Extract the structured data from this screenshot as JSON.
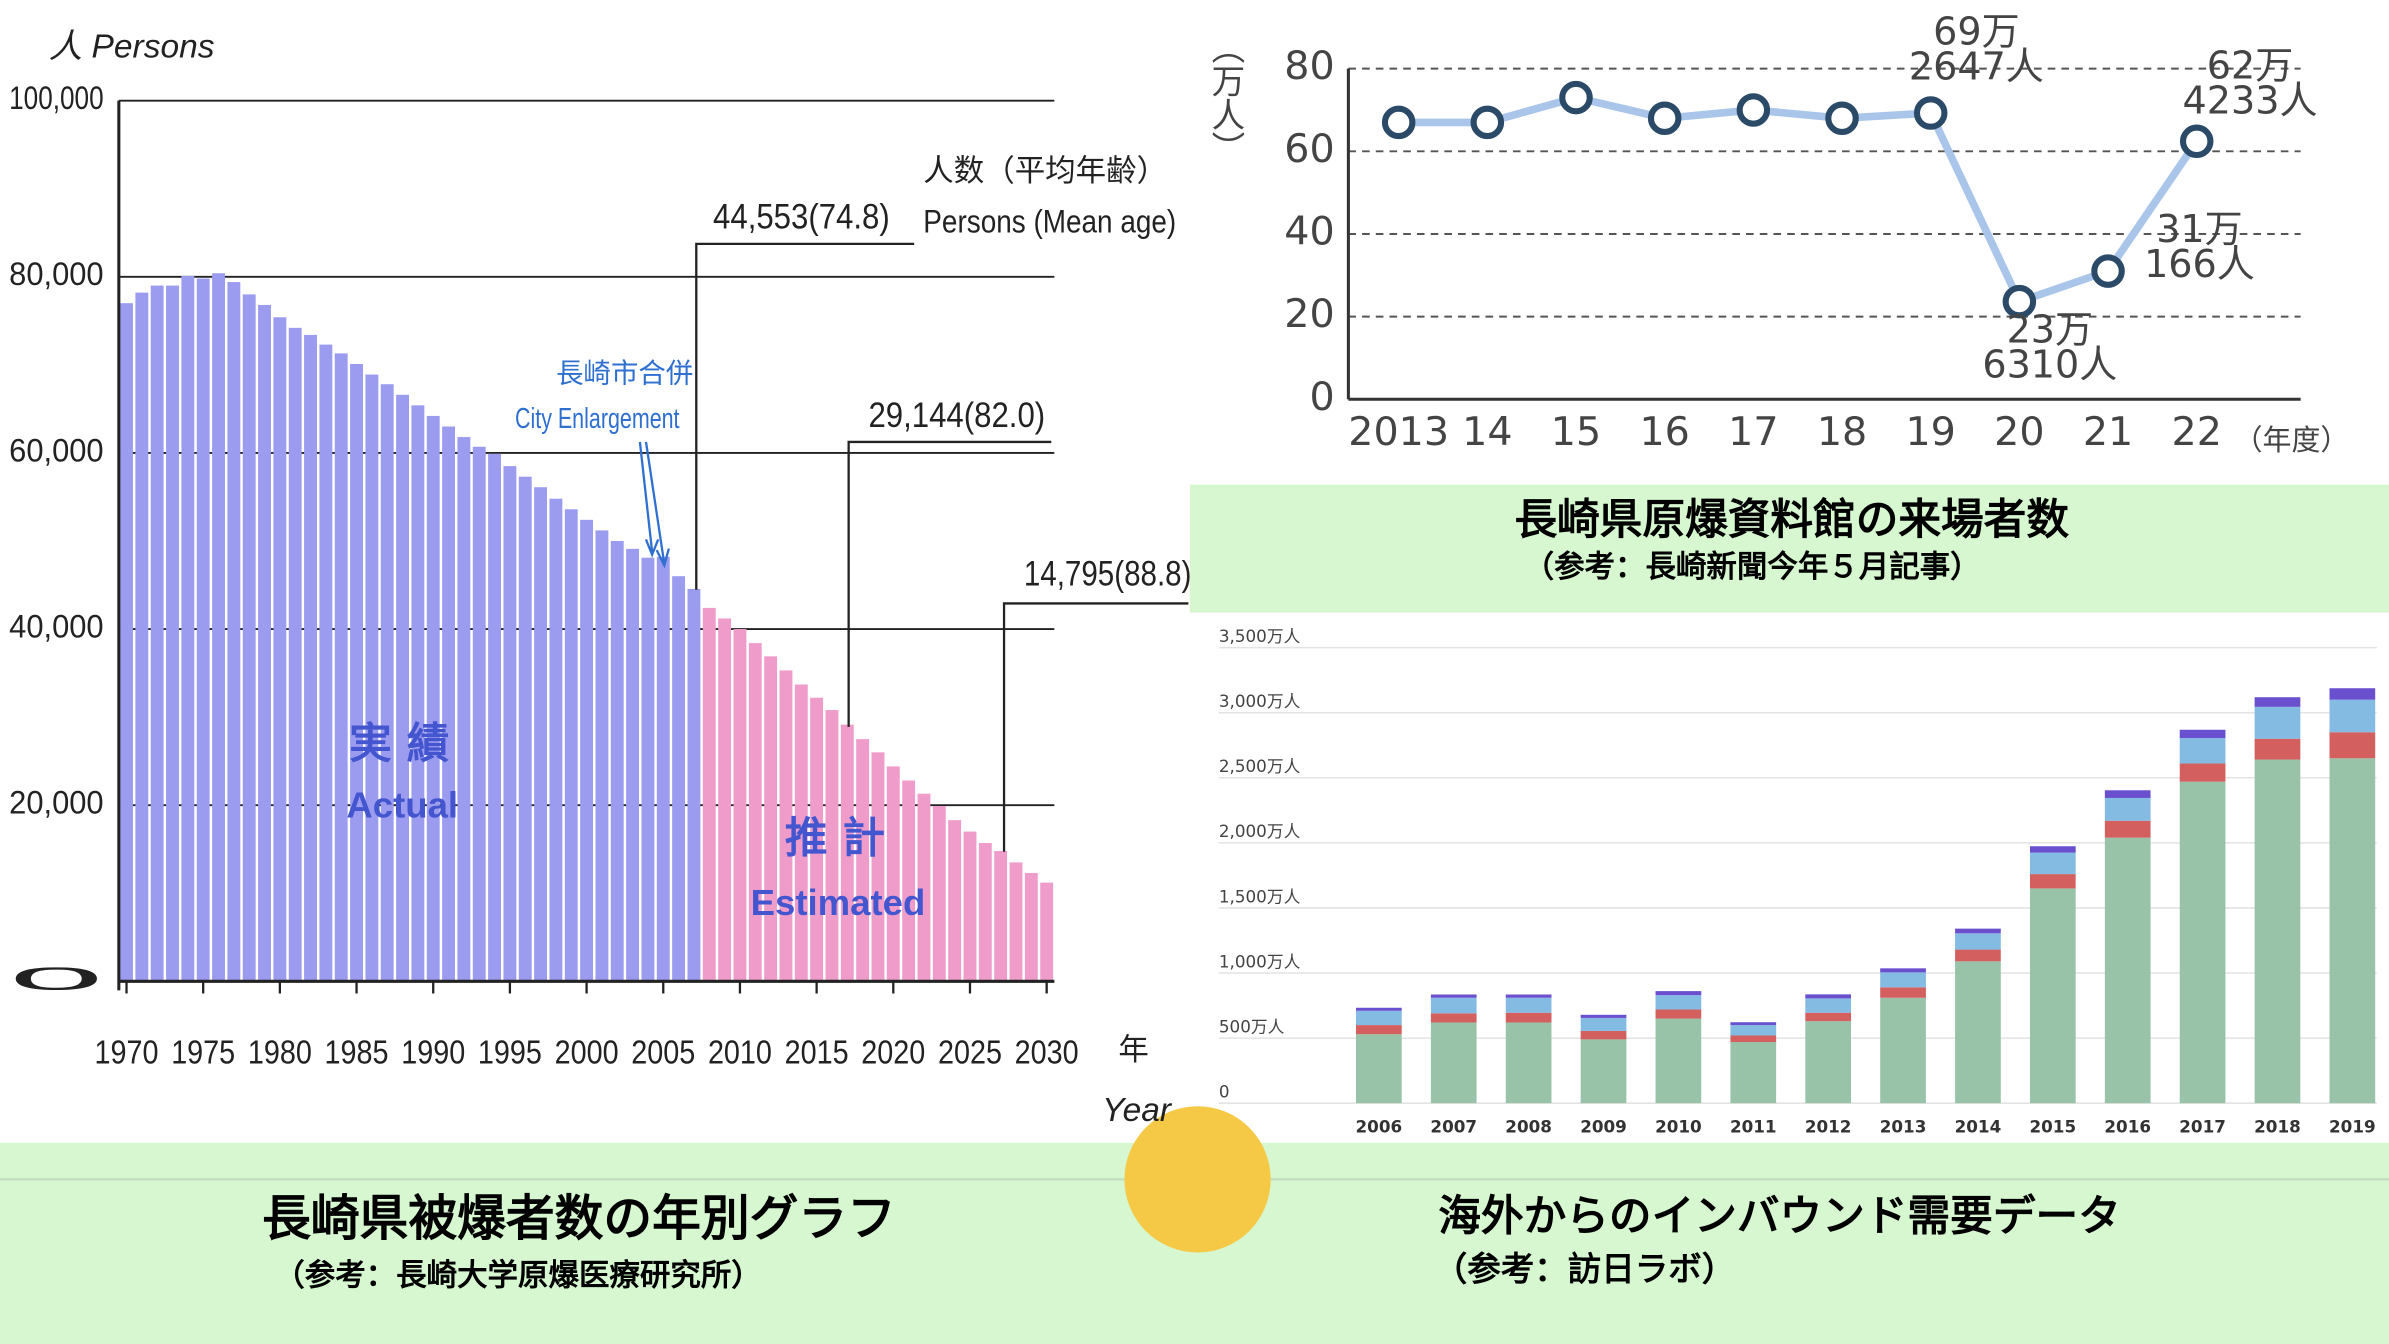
{
  "chart_data": [
    {
      "type": "bar",
      "title": "長崎県被爆者数の年別グラフ",
      "subtitle": "（参考：長崎大学原爆医療研究所）",
      "y_label": "人 Persons",
      "x_label": [
        "年",
        "Year"
      ],
      "annotation_title": [
        "人数（平均年齢）",
        "Persons (Mean age)"
      ],
      "annotations": [
        "44,553(74.8)",
        "29,144(82.0)",
        "14,795(88.8)"
      ],
      "event": [
        "長崎市合併",
        "City Enlargement"
      ],
      "x": [
        1970,
        1971,
        1972,
        1973,
        1974,
        1975,
        1976,
        1977,
        1978,
        1979,
        1980,
        1981,
        1982,
        1983,
        1984,
        1985,
        1986,
        1987,
        1988,
        1989,
        1990,
        1991,
        1992,
        1993,
        1994,
        1995,
        1996,
        1997,
        1998,
        1999,
        2000,
        2001,
        2002,
        2003,
        2004,
        2005,
        2006,
        2007,
        2008,
        2009,
        2010,
        2011,
        2012,
        2013,
        2014,
        2015,
        2016,
        2017,
        2018,
        2019,
        2020,
        2021,
        2022,
        2023,
        2024,
        2025,
        2026,
        2027,
        2028,
        2029,
        2030
      ],
      "xlim": [
        1969.5,
        2030.5
      ],
      "xticks": [
        1970,
        1975,
        1980,
        1985,
        1990,
        1995,
        2000,
        2005,
        2010,
        2015,
        2020,
        2025,
        2030
      ],
      "ylim": [
        0,
        100000
      ],
      "yticks": [
        0,
        {
          "value": 20000,
          "label": "20,000"
        },
        {
          "value": 40000,
          "label": "40,000"
        },
        {
          "value": 60000,
          "label": "60,000"
        },
        {
          "value": 80000,
          "label": "80,000"
        },
        {
          "value": 100000,
          "label": "100,000"
        }
      ],
      "grid": true,
      "series": [
        {
          "name": "Actual",
          "name_ja": "実 績",
          "color": "#9b9bf0",
          "values": [
            77000,
            78200,
            79000,
            79000,
            80100,
            79800,
            80400,
            79400,
            78000,
            76800,
            75400,
            74200,
            73400,
            72300,
            71300,
            70100,
            68900,
            67800,
            66600,
            65400,
            64200,
            63000,
            61800,
            60700,
            59900,
            58500,
            57300,
            56100,
            54800,
            53600,
            52400,
            51200,
            50000,
            49100,
            48100,
            48200,
            46000,
            44553,
            null,
            null,
            null,
            null,
            null,
            null,
            null,
            null,
            null,
            null,
            null,
            null,
            null,
            null,
            null,
            null,
            null,
            null,
            null,
            null,
            null,
            null,
            null
          ]
        },
        {
          "name": "Estimated",
          "name_ja": "推 計",
          "color": "#f09ccb",
          "values": [
            null,
            null,
            null,
            null,
            null,
            null,
            null,
            null,
            null,
            null,
            null,
            null,
            null,
            null,
            null,
            null,
            null,
            null,
            null,
            null,
            null,
            null,
            null,
            null,
            null,
            null,
            null,
            null,
            null,
            null,
            null,
            null,
            null,
            null,
            null,
            null,
            null,
            null,
            42400,
            41200,
            40000,
            38400,
            36900,
            35300,
            33700,
            32200,
            30800,
            29144,
            27500,
            26000,
            24400,
            22800,
            21300,
            19900,
            18300,
            17000,
            15700,
            14795,
            13500,
            12300,
            11200
          ]
        }
      ]
    },
    {
      "type": "line",
      "title": "長崎県原爆資料館の来場者数",
      "subtitle": "（参考：長崎新聞今年５月記事）",
      "y_label": "（万人）",
      "x_label": "（年度）",
      "categories": [
        "2013",
        "14",
        "15",
        "16",
        "17",
        "18",
        "19",
        "20",
        "21",
        "22"
      ],
      "ylim": [
        0,
        80
      ],
      "yticks": [
        0,
        20,
        40,
        60,
        80
      ],
      "grid": true,
      "color": "#a9c5ea",
      "marker_color": "#2b4a68",
      "values": [
        67,
        67,
        73,
        68,
        70,
        68,
        69.2647,
        23.631,
        31.0166,
        62.4233
      ],
      "value_labels": [
        null,
        null,
        null,
        null,
        null,
        null,
        [
          "69万",
          "2647人"
        ],
        [
          "23万",
          "6310人"
        ],
        [
          "31万",
          "166人"
        ],
        [
          "62万",
          "4233人"
        ]
      ]
    },
    {
      "type": "bar",
      "stacked": true,
      "title": "海外からのインバウンド需要データ",
      "subtitle": "（参考：訪日ラボ）",
      "categories": [
        "2006",
        "2007",
        "2008",
        "2009",
        "2010",
        "2011",
        "2012",
        "2013",
        "2014",
        "2015",
        "2016",
        "2017",
        "2018",
        "2019"
      ],
      "ylim": [
        0,
        3500
      ],
      "yticks": [
        0,
        {
          "value": 500,
          "label": "500万人"
        },
        {
          "value": 1000,
          "label": "1,000万人"
        },
        {
          "value": 1500,
          "label": "1,500万人"
        },
        {
          "value": 2000,
          "label": "2,000万人"
        },
        {
          "value": 2500,
          "label": "2,500万人"
        },
        {
          "value": 3000,
          "label": "3,000万人"
        },
        {
          "value": 3500,
          "label": "3,500万人"
        }
      ],
      "grid": true,
      "series": [
        {
          "color": "#98c3a9",
          "values": [
            530,
            620,
            620,
            490,
            650,
            470,
            630,
            810,
            1090,
            1650,
            2040,
            2470,
            2640,
            2650
          ]
        },
        {
          "color": "#d35f5f",
          "values": [
            70,
            70,
            75,
            65,
            70,
            50,
            65,
            80,
            90,
            110,
            130,
            140,
            160,
            200
          ]
        },
        {
          "color": "#84bbe3",
          "values": [
            110,
            120,
            115,
            100,
            110,
            80,
            110,
            115,
            125,
            165,
            175,
            195,
            245,
            250
          ]
        },
        {
          "color": "#6a4fcf",
          "values": [
            23,
            25,
            25,
            24,
            31,
            22,
            31,
            31,
            36,
            49,
            59,
            64,
            74,
            88
          ]
        }
      ]
    }
  ]
}
